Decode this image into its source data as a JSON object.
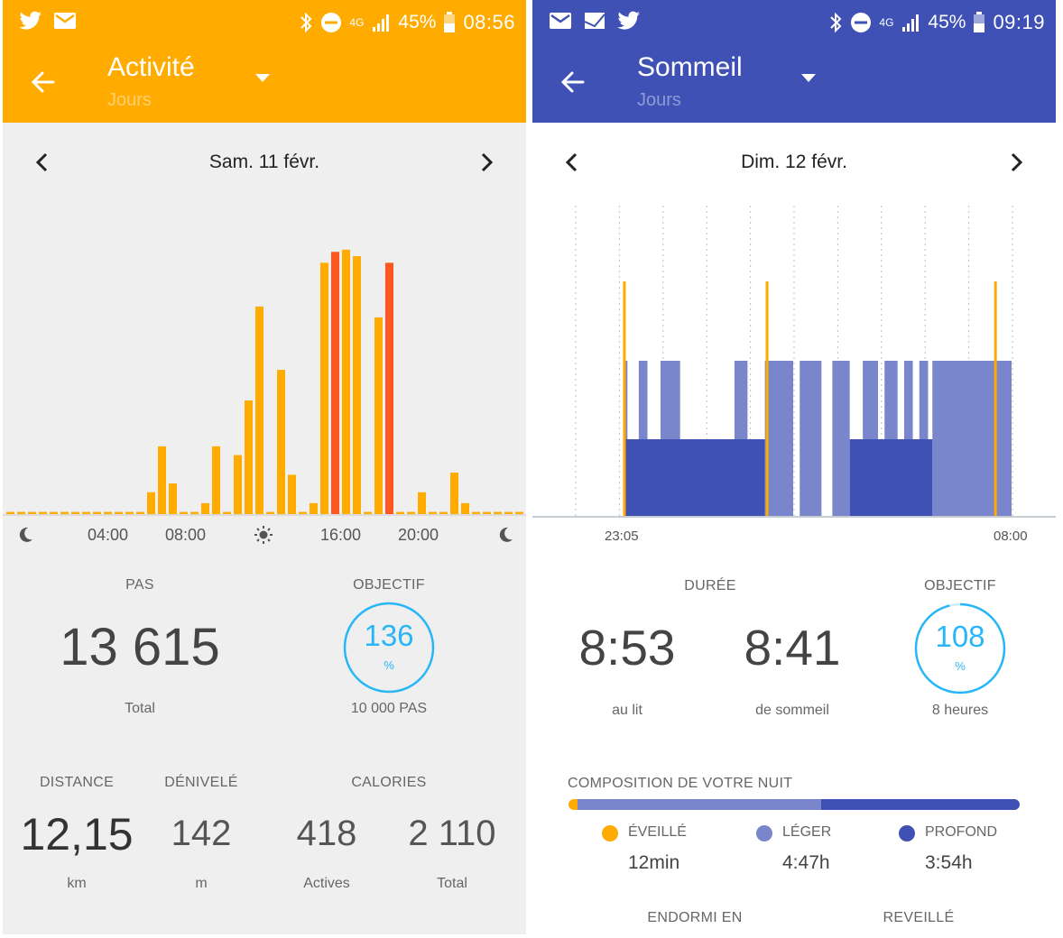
{
  "activity": {
    "status": {
      "battery": "45%",
      "time": "08:56",
      "network": "4G"
    },
    "title": "Activité",
    "subtitle": "Jours",
    "date": "Sam. 11 févr.",
    "colors": {
      "accent": "#ffab00",
      "bar": "#ffab00",
      "highlight": "#ff5722",
      "ring": "#29b6f6"
    },
    "axis_ticks": [
      "04:00",
      "08:00",
      "16:00",
      "20:00"
    ],
    "chart_data": {
      "type": "bar",
      "xlabel": "",
      "ylabel": "",
      "hours": [
        "00:00",
        "00:30",
        "01:00",
        "01:30",
        "02:00",
        "02:30",
        "03:00",
        "03:30",
        "04:00",
        "04:30",
        "05:00",
        "05:30",
        "06:00",
        "06:30",
        "07:00",
        "07:30",
        "08:00",
        "08:30",
        "09:00",
        "09:30",
        "10:00",
        "10:30",
        "11:00",
        "11:30",
        "12:00",
        "12:30",
        "13:00",
        "13:30",
        "14:00",
        "14:30",
        "15:00",
        "15:30",
        "16:00",
        "16:30",
        "17:00",
        "17:30",
        "18:00",
        "18:30",
        "19:00",
        "19:30",
        "20:00",
        "20:30",
        "21:00",
        "21:30",
        "22:00",
        "22:30",
        "23:00",
        "23:30"
      ],
      "values": [
        1,
        1,
        1,
        1,
        1,
        1,
        1,
        1,
        1,
        1,
        1,
        1,
        1,
        10,
        31,
        14,
        1,
        1,
        5,
        31,
        1,
        27,
        52,
        95,
        1,
        66,
        18,
        1,
        5,
        115,
        120,
        121,
        118,
        1,
        90,
        115,
        1,
        1,
        10,
        1,
        1,
        19,
        5,
        1,
        1,
        1,
        1,
        1
      ],
      "highlight_indices": [
        30,
        35
      ],
      "ylim": [
        0,
        130
      ]
    },
    "stats": {
      "steps_label": "PAS",
      "steps_value": "13 615",
      "steps_sub": "Total",
      "goal_label": "OBJECTIF",
      "goal_percent": "136",
      "goal_percent_sign": "%",
      "goal_fraction": 1.0,
      "goal_target": "10 000 PAS",
      "distance_label": "DISTANCE",
      "distance_value": "12,15",
      "distance_unit": "km",
      "elevation_label": "DÉNIVELÉ",
      "elevation_value": "142",
      "elevation_unit": "m",
      "calories_label": "CALORIES",
      "calories_active": "418",
      "calories_active_label": "Actives",
      "calories_total": "2 110",
      "calories_total_label": "Total"
    }
  },
  "sleep": {
    "status": {
      "battery": "45%",
      "time": "09:19",
      "network": "4G"
    },
    "title": "Sommeil",
    "subtitle": "Jours",
    "date": "Dim. 12 févr.",
    "colors": {
      "accent": "#3f51b5",
      "light": "#7986cb",
      "deep": "#3f51b5",
      "awake": "#ffab00",
      "ring": "#29b6f6"
    },
    "axis_start": "23:05",
    "axis_end": "08:00",
    "chart_data": {
      "type": "area",
      "x_unit": "hours since 23:05",
      "x_range": [
        0,
        8.92
      ],
      "deep_segments": [
        [
          0.0,
          3.25
        ],
        [
          5.2,
          7.1
        ]
      ],
      "light_segments": [
        [
          0.0,
          0.09
        ],
        [
          0.35,
          0.55
        ],
        [
          0.85,
          1.3
        ],
        [
          2.55,
          2.85
        ],
        [
          3.25,
          3.9
        ],
        [
          4.05,
          4.55
        ],
        [
          4.8,
          5.2
        ],
        [
          5.5,
          5.85
        ],
        [
          6.0,
          6.3
        ],
        [
          6.45,
          6.65
        ],
        [
          6.8,
          7.0
        ],
        [
          7.1,
          8.92
        ]
      ],
      "awake_events": [
        0.02,
        3.3,
        8.55
      ]
    },
    "stats": {
      "duration_label": "DURÉE",
      "in_bed_value": "8:53",
      "in_bed_label": "au lit",
      "asleep_value": "8:41",
      "asleep_label": "de sommeil",
      "goal_label": "OBJECTIF",
      "goal_percent": "108",
      "goal_percent_sign": "%",
      "goal_fraction": 0.96,
      "goal_target": "8 heures",
      "composition_label": "COMPOSITION DE VOTRE NUIT",
      "composition": {
        "awake_fraction": 0.02,
        "light_fraction": 0.54,
        "deep_fraction": 0.44
      },
      "awake_label": "ÉVEILLÉ",
      "awake_value": "12min",
      "light_label": "LÉGER",
      "light_value": "4:47h",
      "deep_label": "PROFOND",
      "deep_value": "3:54h",
      "fell_asleep_label": "ENDORMI EN",
      "woke_label": "REVEILLÉ"
    }
  }
}
